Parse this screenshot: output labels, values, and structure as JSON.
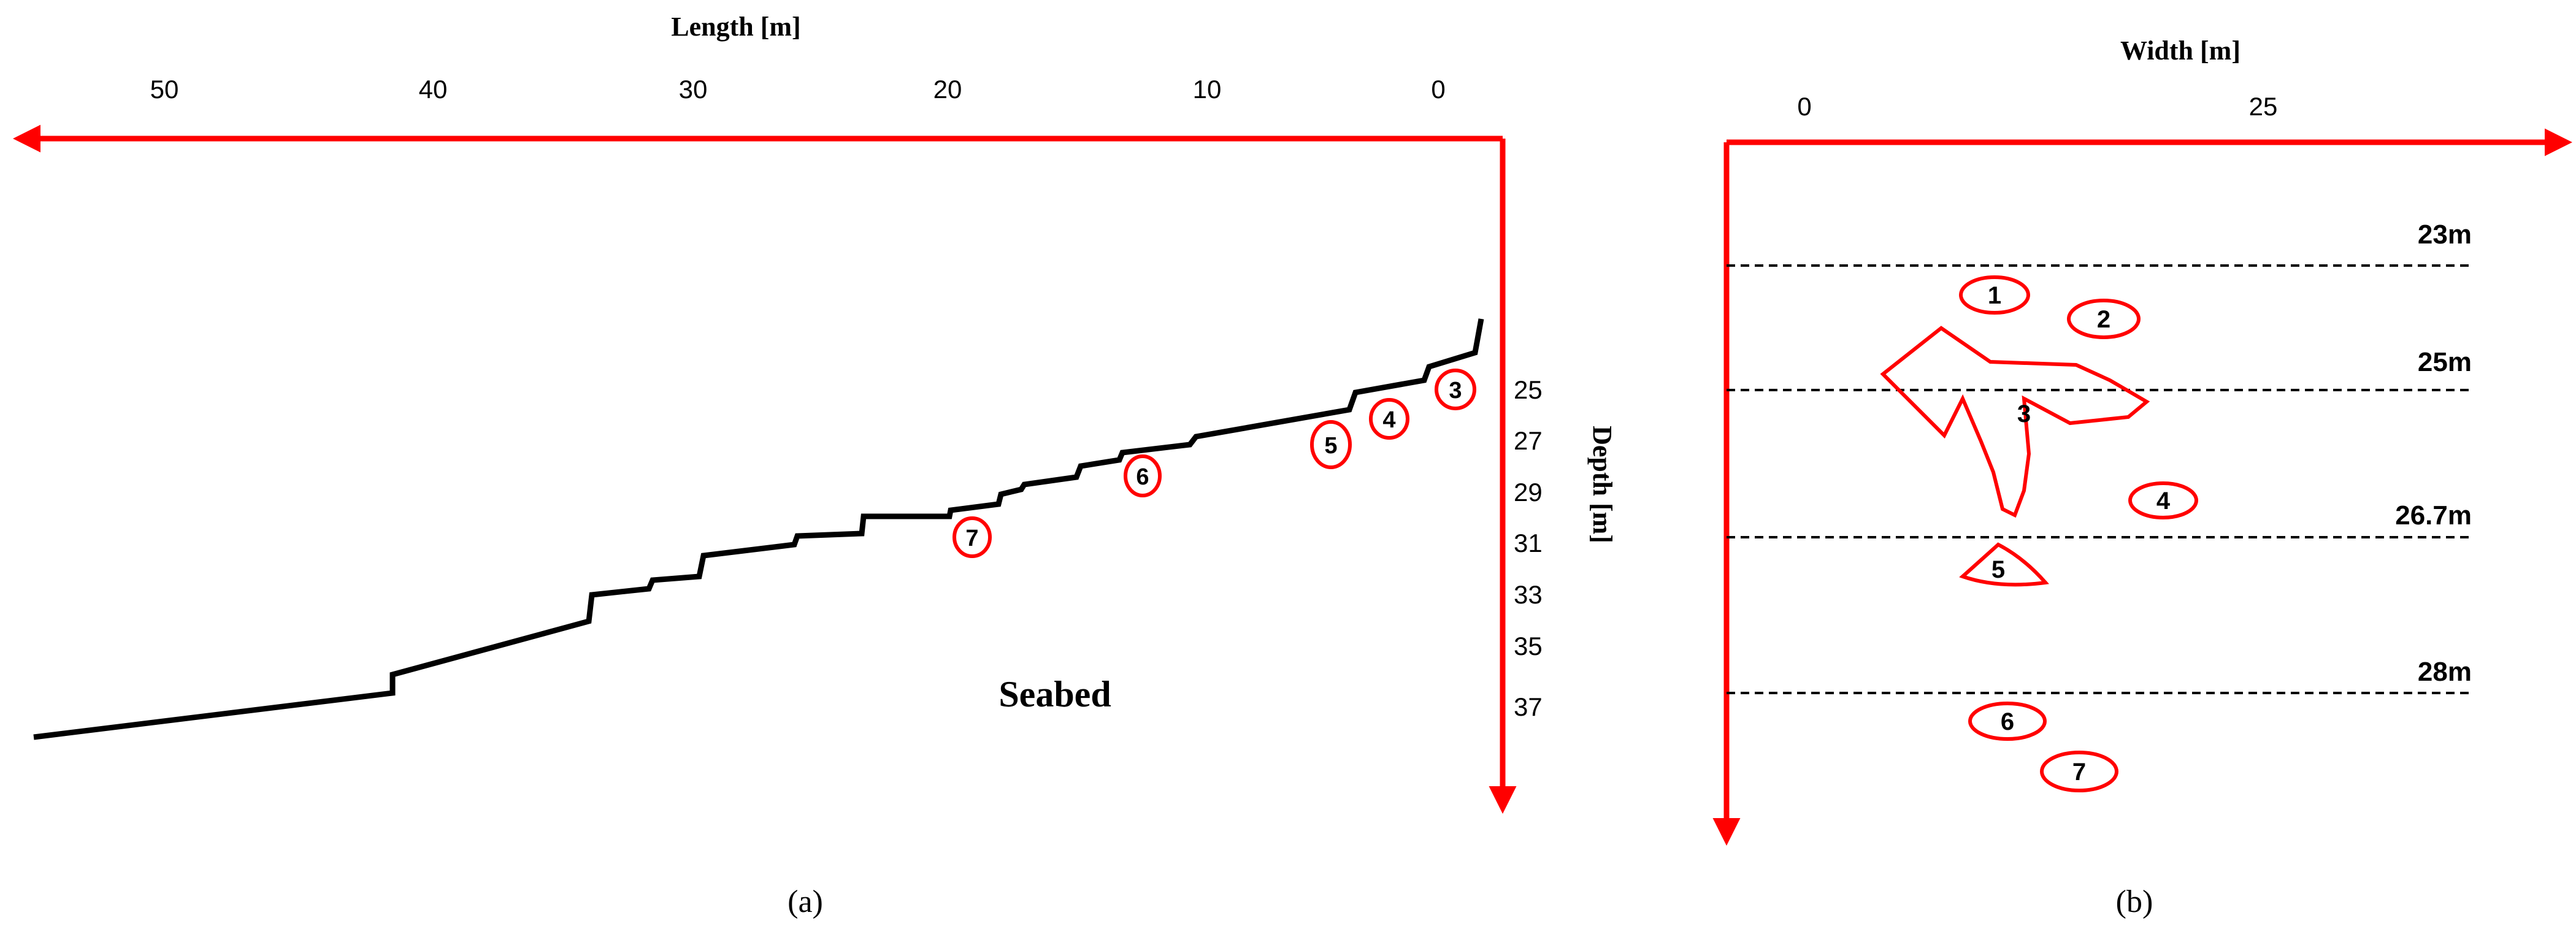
{
  "colors": {
    "axis": "#ff0000",
    "profile": "#000000",
    "marker": "#ff0000",
    "text": "#000000"
  },
  "panel_a": {
    "x_axis_title": "Length [m]",
    "x_ticks": [
      "50",
      "40",
      "30",
      "20",
      "10",
      "0"
    ],
    "y_axis_title": "Depth [m]",
    "y_ticks": [
      "25",
      "27",
      "29",
      "31",
      "33",
      "35",
      "37"
    ],
    "region_label": "Seabed",
    "markers": [
      "3",
      "4",
      "5",
      "6",
      "7"
    ],
    "caption": "(a)"
  },
  "panel_b": {
    "x_axis_title": "Width [m]",
    "x_ticks": [
      "0",
      "25"
    ],
    "depth_lines": [
      "23m",
      "25m",
      "26.7m",
      "28m"
    ],
    "markers": [
      "1",
      "2",
      "3",
      "4",
      "5",
      "6",
      "7"
    ],
    "caption": "(b)"
  }
}
